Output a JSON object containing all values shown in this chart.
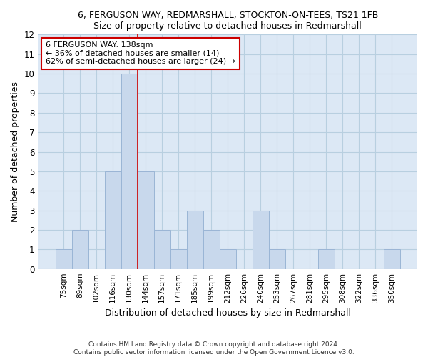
{
  "title_line1": "6, FERGUSON WAY, REDMARSHALL, STOCKTON-ON-TEES, TS21 1FB",
  "title_line2": "Size of property relative to detached houses in Redmarshall",
  "xlabel": "Distribution of detached houses by size in Redmarshall",
  "ylabel": "Number of detached properties",
  "bar_labels": [
    "75sqm",
    "89sqm",
    "102sqm",
    "116sqm",
    "130sqm",
    "144sqm",
    "157sqm",
    "171sqm",
    "185sqm",
    "199sqm",
    "212sqm",
    "226sqm",
    "240sqm",
    "253sqm",
    "267sqm",
    "281sqm",
    "295sqm",
    "308sqm",
    "322sqm",
    "336sqm",
    "350sqm"
  ],
  "bar_values": [
    1,
    2,
    0,
    5,
    10,
    5,
    2,
    1,
    3,
    2,
    1,
    0,
    3,
    1,
    0,
    0,
    1,
    0,
    0,
    0,
    1
  ],
  "bar_color": "#c8d8ec",
  "bar_edge_color": "#9ab5d5",
  "reference_line_color": "#cc0000",
  "reference_line_x": 4.5,
  "ylim": [
    0,
    12
  ],
  "yticks": [
    0,
    1,
    2,
    3,
    4,
    5,
    6,
    7,
    8,
    9,
    10,
    11,
    12
  ],
  "annotation_box_text": "6 FERGUSON WAY: 138sqm\n← 36% of detached houses are smaller (14)\n62% of semi-detached houses are larger (24) →",
  "plot_bg_color": "#dce8f5",
  "grid_color": "#b8cfe0",
  "footnote1": "Contains HM Land Registry data © Crown copyright and database right 2024.",
  "footnote2": "Contains public sector information licensed under the Open Government Licence v3.0."
}
